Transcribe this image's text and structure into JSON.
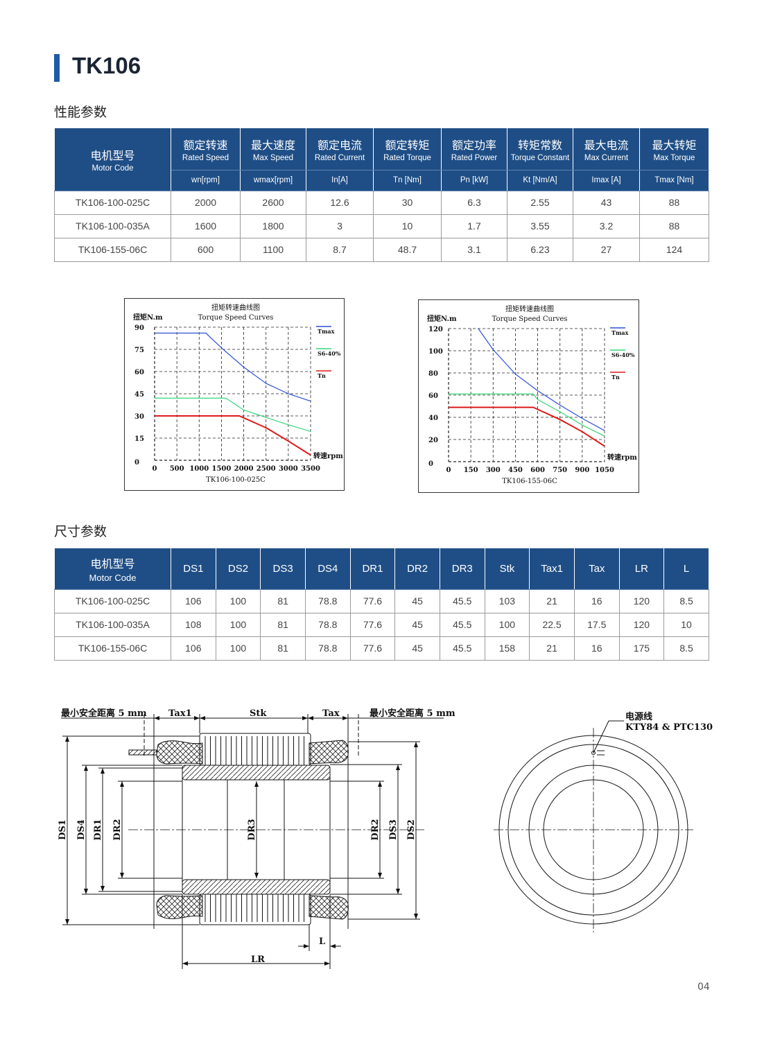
{
  "title": "TK106",
  "performance": {
    "section_title": "性能参数",
    "headers": [
      {
        "cn": "电机型号",
        "en": "Motor Code"
      },
      {
        "cn": "额定转速",
        "en": "Rated Speed",
        "unit": "wn[rpm]"
      },
      {
        "cn": "最大速度",
        "en": "Max Speed",
        "unit": "wmax[rpm]"
      },
      {
        "cn": "额定电流",
        "en": "Rated Current",
        "unit": "In[A]"
      },
      {
        "cn": "额定转矩",
        "en": "Rated Torque",
        "unit": "Tn [Nm]"
      },
      {
        "cn": "额定功率",
        "en": "Rated Power",
        "unit": "Pn [kW]"
      },
      {
        "cn": "转矩常数",
        "en": "Torque Constant",
        "unit": "Kt [Nm/A]"
      },
      {
        "cn": "最大电流",
        "en": "Max Current",
        "unit": "Imax [A]"
      },
      {
        "cn": "最大转矩",
        "en": "Max Torque",
        "unit": "Tmax [Nm]"
      }
    ],
    "rows": [
      [
        "TK106-100-025C",
        "2000",
        "2600",
        "12.6",
        "30",
        "6.3",
        "2.55",
        "43",
        "88"
      ],
      [
        "TK106-100-035A",
        "1600",
        "1800",
        "3",
        "10",
        "1.7",
        "3.55",
        "3.2",
        "88"
      ],
      [
        "TK106-155-06C",
        "600",
        "1100",
        "8.7",
        "48.7",
        "3.1",
        "6.23",
        "27",
        "124"
      ]
    ]
  },
  "chart_data": [
    {
      "type": "line",
      "title": "扭矩转速曲线图",
      "subtitle": "Torque Speed Curves",
      "ylabel": "扭矩N.m",
      "xlabel": "转速rpm",
      "caption": "TK106-100-025C",
      "xlim": [
        0,
        3500
      ],
      "ylim": [
        0,
        90
      ],
      "xticks": [
        "0",
        "500",
        "1000",
        "1500",
        "2000",
        "2500",
        "3000",
        "3500"
      ],
      "yticks": [
        "0",
        "15",
        "30",
        "45",
        "60",
        "75",
        "90"
      ],
      "grid": true,
      "legend": "right",
      "series": [
        {
          "name": "Tmax",
          "color": "#2d4fd6",
          "x": [
            0,
            1150,
            1500,
            2000,
            2500,
            3000,
            3500
          ],
          "y": [
            86,
            86,
            76,
            63,
            52,
            45,
            40
          ]
        },
        {
          "name": "S6-40%",
          "color": "#35d67a",
          "x": [
            0,
            1600,
            2000,
            2500,
            3000,
            3500
          ],
          "y": [
            42,
            42,
            34,
            29,
            24,
            19.5
          ]
        },
        {
          "name": "Tn",
          "color": "#e0191b",
          "x": [
            0,
            1900,
            2500,
            3000,
            3500
          ],
          "y": [
            30,
            30,
            22,
            13,
            3.5
          ]
        }
      ]
    },
    {
      "type": "line",
      "title": "扭矩转速曲线图",
      "subtitle": "Torque Speed Curves",
      "ylabel": "扭矩N.m",
      "xlabel": "转速rpm",
      "caption": "TK106-155-06C",
      "xlim": [
        0,
        1050
      ],
      "ylim": [
        0,
        120
      ],
      "xticks": [
        "0",
        "150",
        "300",
        "450",
        "600",
        "750",
        "900",
        "1050"
      ],
      "yticks": [
        "0",
        "20",
        "40",
        "60",
        "80",
        "100",
        "120"
      ],
      "grid": true,
      "legend": "right",
      "series": [
        {
          "name": "Tmax",
          "color": "#2d4fd6",
          "x": [
            200,
            300,
            450,
            600,
            750,
            900,
            1050
          ],
          "y": [
            120,
            101,
            79,
            64,
            51,
            39,
            28
          ]
        },
        {
          "name": "S6-40%",
          "color": "#35d67a",
          "x": [
            0,
            570,
            600,
            750,
            900,
            1050
          ],
          "y": [
            61,
            61,
            56,
            45,
            33,
            23
          ]
        },
        {
          "name": "Tn",
          "color": "#e0191b",
          "x": [
            0,
            570,
            750,
            900,
            1050
          ],
          "y": [
            49,
            49,
            38,
            27,
            14
          ]
        }
      ]
    }
  ],
  "dimensions": {
    "section_title": "尺寸参数",
    "headers": [
      {
        "cn": "电机型号",
        "en": "Motor Code"
      },
      "DS1",
      "DS2",
      "DS3",
      "DS4",
      "DR1",
      "DR2",
      "DR3",
      "Stk",
      "Tax1",
      "Tax",
      "LR",
      "L"
    ],
    "rows": [
      [
        "TK106-100-025C",
        "106",
        "100",
        "81",
        "78.8",
        "77.6",
        "45",
        "45.5",
        "103",
        "21",
        "16",
        "120",
        "8.5"
      ],
      [
        "TK106-100-035A",
        "108",
        "100",
        "81",
        "78.8",
        "77.6",
        "45",
        "45.5",
        "100",
        "22.5",
        "17.5",
        "120",
        "10"
      ],
      [
        "TK106-155-06C",
        "106",
        "100",
        "81",
        "78.8",
        "77.6",
        "45",
        "45.5",
        "158",
        "21",
        "16",
        "175",
        "8.5"
      ]
    ]
  },
  "drawing": {
    "safety_left": "最小安全距离 5 mm",
    "safety_right": "最小安全距离 5 mm",
    "tax1": "Tax1",
    "stk": "Stk",
    "tax": "Tax",
    "ds1": "DS1",
    "ds4": "DS4",
    "dr1": "DR1",
    "dr2": "DR2",
    "dr3": "DR3",
    "ds3": "DS3",
    "ds2": "DS2",
    "lr": "LR",
    "l": "L",
    "cable_label": "电源线",
    "sensor_label": "KTY84 & PTC130"
  },
  "page_number": "04"
}
